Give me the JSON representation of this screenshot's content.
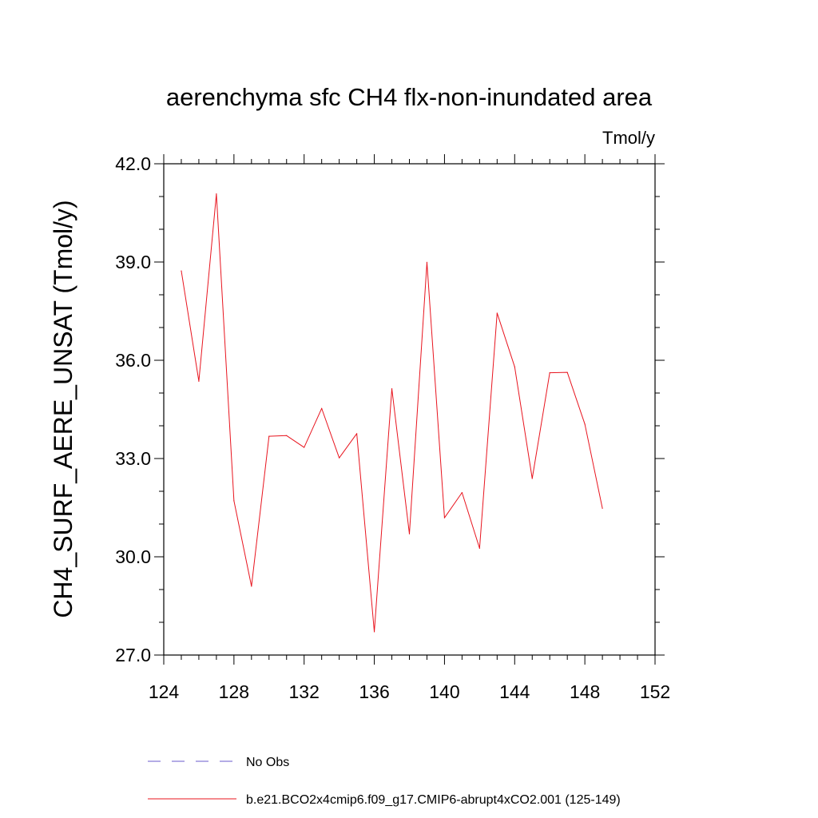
{
  "chart_data": {
    "type": "line",
    "title": "aerenchyma sfc CH4 flx-non-inundated area",
    "units_label": "Tmol/y",
    "xlabel": "",
    "ylabel": "CH4_SURF_AERE_UNSAT  (Tmol/y)",
    "xlim": [
      124,
      152
    ],
    "ylim": [
      27.0,
      42.0
    ],
    "x_ticks": [
      "124",
      "128",
      "132",
      "136",
      "140",
      "144",
      "148",
      "152"
    ],
    "y_ticks": [
      "27.0",
      "30.0",
      "33.0",
      "36.0",
      "39.0",
      "42.0"
    ],
    "grid": false,
    "legend_position": "bottom",
    "series": [
      {
        "name": "b.e21.BCO2x4cmip6.f09_g17.CMIP6-abrupt4xCO2.001 (125-149)",
        "color": "#e8141e",
        "x": [
          125,
          126,
          127,
          128,
          129,
          130,
          131,
          132,
          133,
          134,
          135,
          136,
          137,
          138,
          139,
          140,
          141,
          142,
          143,
          144,
          145,
          146,
          147,
          148,
          149
        ],
        "y": [
          38.73,
          35.36,
          41.08,
          31.71,
          29.1,
          33.68,
          33.7,
          33.34,
          34.53,
          33.02,
          33.76,
          27.71,
          35.13,
          30.7,
          38.99,
          31.19,
          31.96,
          30.26,
          37.44,
          35.8,
          32.39,
          35.62,
          35.63,
          34.05,
          31.48
        ]
      }
    ],
    "legend": [
      {
        "label": "No Obs",
        "color": "#6a5acd",
        "style": "dashed"
      },
      {
        "label": "b.e21.BCO2x4cmip6.f09_g17.CMIP6-abrupt4xCO2.001 (125-149)",
        "color": "#e8141e",
        "style": "solid"
      }
    ]
  }
}
